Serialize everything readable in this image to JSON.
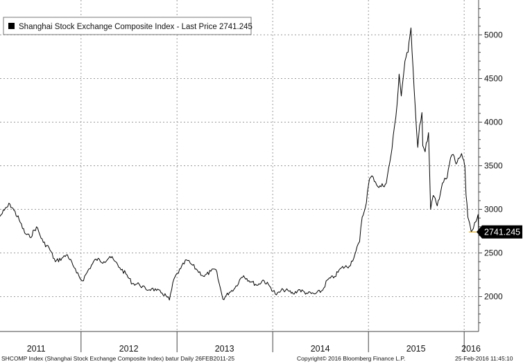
{
  "chart_data": {
    "type": "line",
    "title": "",
    "legend": {
      "text": "Shanghai Stock Exchange Composite Index - Last Price 2741.245",
      "placement": "top-left"
    },
    "last_price_label": "2741.245",
    "ylim": [
      1600,
      5400
    ],
    "y_ticks": [
      2000,
      2500,
      3000,
      3500,
      4000,
      4500,
      5000
    ],
    "y_tick_labels": [
      "2000",
      "2500",
      "3000",
      "3500",
      "4000",
      "4500",
      "5000"
    ],
    "xlim": [
      "2011-02-26",
      "2016-02-25"
    ],
    "x_year_labels": [
      {
        "label": "2011",
        "mid": "2011-07-14"
      },
      {
        "label": "2012",
        "mid": "2012-07-01"
      },
      {
        "label": "2013",
        "mid": "2013-07-01"
      },
      {
        "label": "2014",
        "mid": "2014-07-01"
      },
      {
        "label": "2015",
        "mid": "2015-07-01"
      },
      {
        "label": "2016",
        "mid": "2016-01-27"
      }
    ],
    "year_boundaries": [
      "2012-01-01",
      "2013-01-01",
      "2014-01-01",
      "2015-01-01",
      "2016-01-01"
    ],
    "grid": true,
    "y_axis_side": "right",
    "series": [
      {
        "x": [
          "2011-02-26",
          "2011-03-15",
          "2011-04-05",
          "2011-04-20",
          "2011-05-10",
          "2011-05-31",
          "2011-06-20",
          "2011-07-15",
          "2011-08-10",
          "2011-09-01",
          "2011-09-25",
          "2011-10-20",
          "2011-11-10",
          "2011-12-01",
          "2011-12-15",
          "2012-01-06",
          "2012-02-01",
          "2012-02-27",
          "2012-03-28",
          "2012-04-20",
          "2012-05-07",
          "2012-05-28",
          "2012-06-20",
          "2012-07-15",
          "2012-08-10",
          "2012-09-05",
          "2012-09-26",
          "2012-10-15",
          "2012-11-05",
          "2012-11-20",
          "2012-12-03",
          "2012-12-20",
          "2013-01-15",
          "2013-02-06",
          "2013-02-25",
          "2013-03-20",
          "2013-04-15",
          "2013-05-10",
          "2013-05-29",
          "2013-06-10",
          "2013-06-25",
          "2013-07-20",
          "2013-08-10",
          "2013-09-01",
          "2013-09-12",
          "2013-10-10",
          "2013-11-05",
          "2013-11-25",
          "2013-12-20",
          "2014-01-15",
          "2014-02-10",
          "2014-03-05",
          "2014-03-20",
          "2014-04-10",
          "2014-05-10",
          "2014-06-10",
          "2014-07-10",
          "2014-07-28",
          "2014-08-25",
          "2014-09-20",
          "2014-10-20",
          "2014-11-10",
          "2014-11-28",
          "2014-12-08",
          "2014-12-20",
          "2015-01-05",
          "2015-01-19",
          "2015-02-10",
          "2015-03-10",
          "2015-04-01",
          "2015-04-20",
          "2015-04-28",
          "2015-05-06",
          "2015-05-20",
          "2015-06-01",
          "2015-06-12",
          "2015-06-20",
          "2015-06-28",
          "2015-07-08",
          "2015-07-15",
          "2015-07-24",
          "2015-07-27",
          "2015-08-05",
          "2015-08-18",
          "2015-08-26",
          "2015-09-05",
          "2015-09-20",
          "2015-10-10",
          "2015-10-28",
          "2015-11-10",
          "2015-11-20",
          "2015-12-01",
          "2015-12-22",
          "2016-01-04",
          "2016-01-08",
          "2016-01-15",
          "2016-01-22",
          "2016-01-28",
          "2016-02-05",
          "2016-02-15",
          "2016-02-23",
          "2016-02-25"
        ],
        "values": [
          2920,
          2990,
          3060,
          2990,
          2880,
          2730,
          2680,
          2800,
          2620,
          2560,
          2400,
          2440,
          2480,
          2360,
          2270,
          2180,
          2320,
          2430,
          2400,
          2460,
          2410,
          2330,
          2260,
          2150,
          2140,
          2080,
          2090,
          2070,
          2040,
          2010,
          1960,
          2200,
          2320,
          2420,
          2370,
          2300,
          2230,
          2290,
          2310,
          2160,
          1970,
          2050,
          2100,
          2210,
          2240,
          2170,
          2130,
          2190,
          2120,
          2020,
          2080,
          2060,
          2030,
          2080,
          2040,
          2030,
          2070,
          2190,
          2230,
          2330,
          2350,
          2480,
          2630,
          2910,
          3020,
          3350,
          3370,
          3250,
          3300,
          3700,
          4200,
          4550,
          4300,
          4700,
          4800,
          5080,
          4620,
          4190,
          3710,
          3960,
          4110,
          3730,
          3660,
          3880,
          3000,
          3160,
          3040,
          3300,
          3360,
          3590,
          3630,
          3520,
          3640,
          3480,
          3160,
          2910,
          2840,
          2740,
          2780,
          2860,
          2940,
          2741
        ]
      }
    ]
  },
  "footer": {
    "left": "SHCOMP Index (Shanghai Stock Exchange Composite Index) batur  Daily 26FEB2011-25",
    "center": "Copyright© 2016 Bloomberg Finance L.P.",
    "right": "25-Feb-2016 11:45:10"
  },
  "colors": {
    "line": "#000000",
    "grid": "#9a9a9a",
    "axis": "#444444",
    "last_price_line": "#e0a000",
    "last_price_box": "#000000",
    "legend_border": "#777777"
  }
}
